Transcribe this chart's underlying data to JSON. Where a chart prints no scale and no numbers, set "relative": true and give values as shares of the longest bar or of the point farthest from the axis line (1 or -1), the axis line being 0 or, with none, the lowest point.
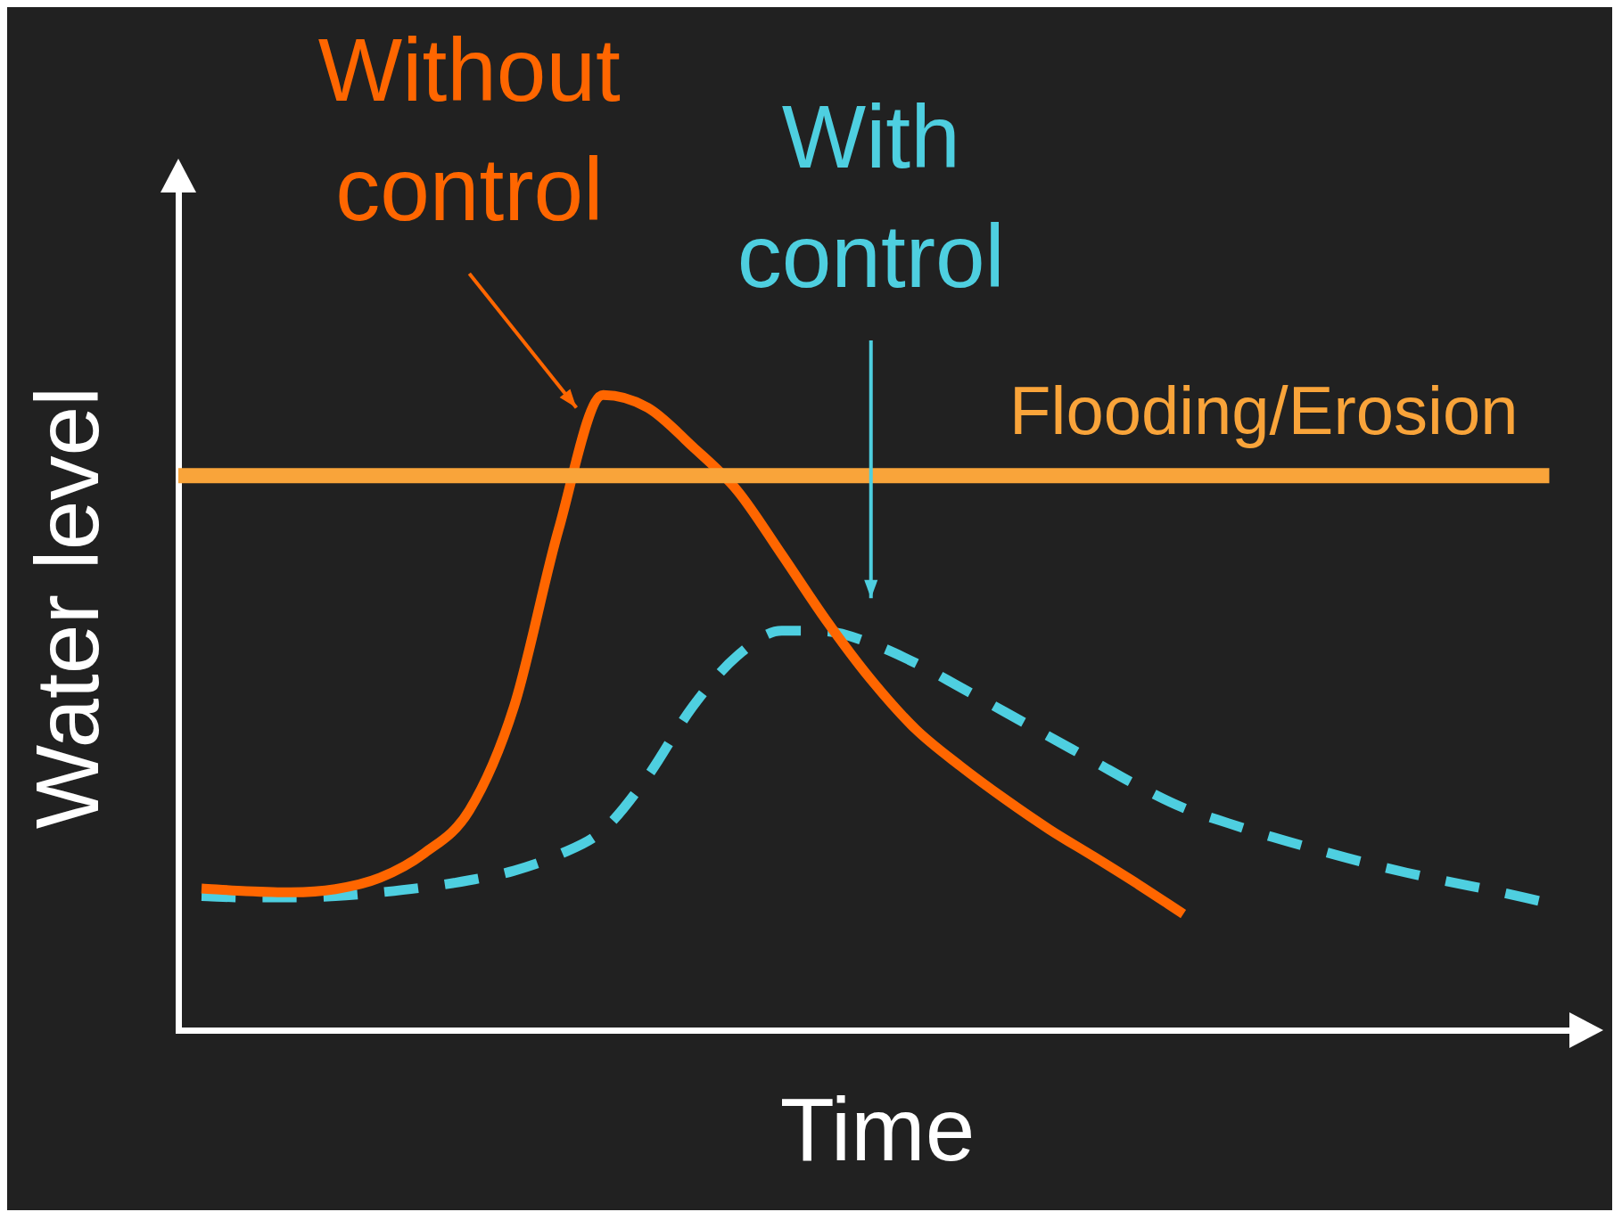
{
  "chart_data": {
    "type": "line",
    "relative": true,
    "xlabel": "Time",
    "ylabel": "Water level",
    "grid": false,
    "legend": false,
    "marker": "none",
    "categories": [
      null,
      null,
      null,
      null,
      null,
      null,
      null,
      null,
      null,
      null,
      null,
      null,
      null,
      null,
      null,
      null,
      null,
      null,
      null,
      null,
      null,
      null,
      null,
      null,
      null,
      null,
      null,
      null,
      null,
      null,
      null
    ],
    "series": [
      {
        "name": "Without control",
        "color": "#ff6600",
        "line_style": "solid",
        "values": [
          0.223,
          0.219,
          0.217,
          0.222,
          0.24,
          0.279,
          0.346,
          0.509,
          0.788,
          1.0,
          0.98,
          0.919,
          0.85,
          0.749,
          0.645,
          0.552,
          0.474,
          0.416,
          0.364,
          0.316,
          0.273,
          0.229,
          0.183,
          null,
          null,
          null,
          null,
          null,
          null,
          null,
          null
        ]
      },
      {
        "name": "With control",
        "color": "#4ecfe0",
        "line_style": "dashed",
        "values": [
          0.211,
          0.209,
          0.209,
          0.211,
          0.217,
          0.225,
          0.236,
          0.251,
          0.276,
          0.315,
          0.4,
          0.509,
          0.589,
          0.629,
          0.628,
          0.609,
          0.578,
          0.54,
          0.501,
          0.462,
          0.423,
          0.384,
          0.35,
          0.326,
          0.304,
          0.284,
          0.265,
          0.248,
          0.233,
          0.219,
          0.203
        ]
      }
    ],
    "ref_lines": [
      {
        "axis": "y",
        "value": 0.873,
        "label": "Flooding/Erosion",
        "color": "#f9a43a"
      }
    ]
  }
}
